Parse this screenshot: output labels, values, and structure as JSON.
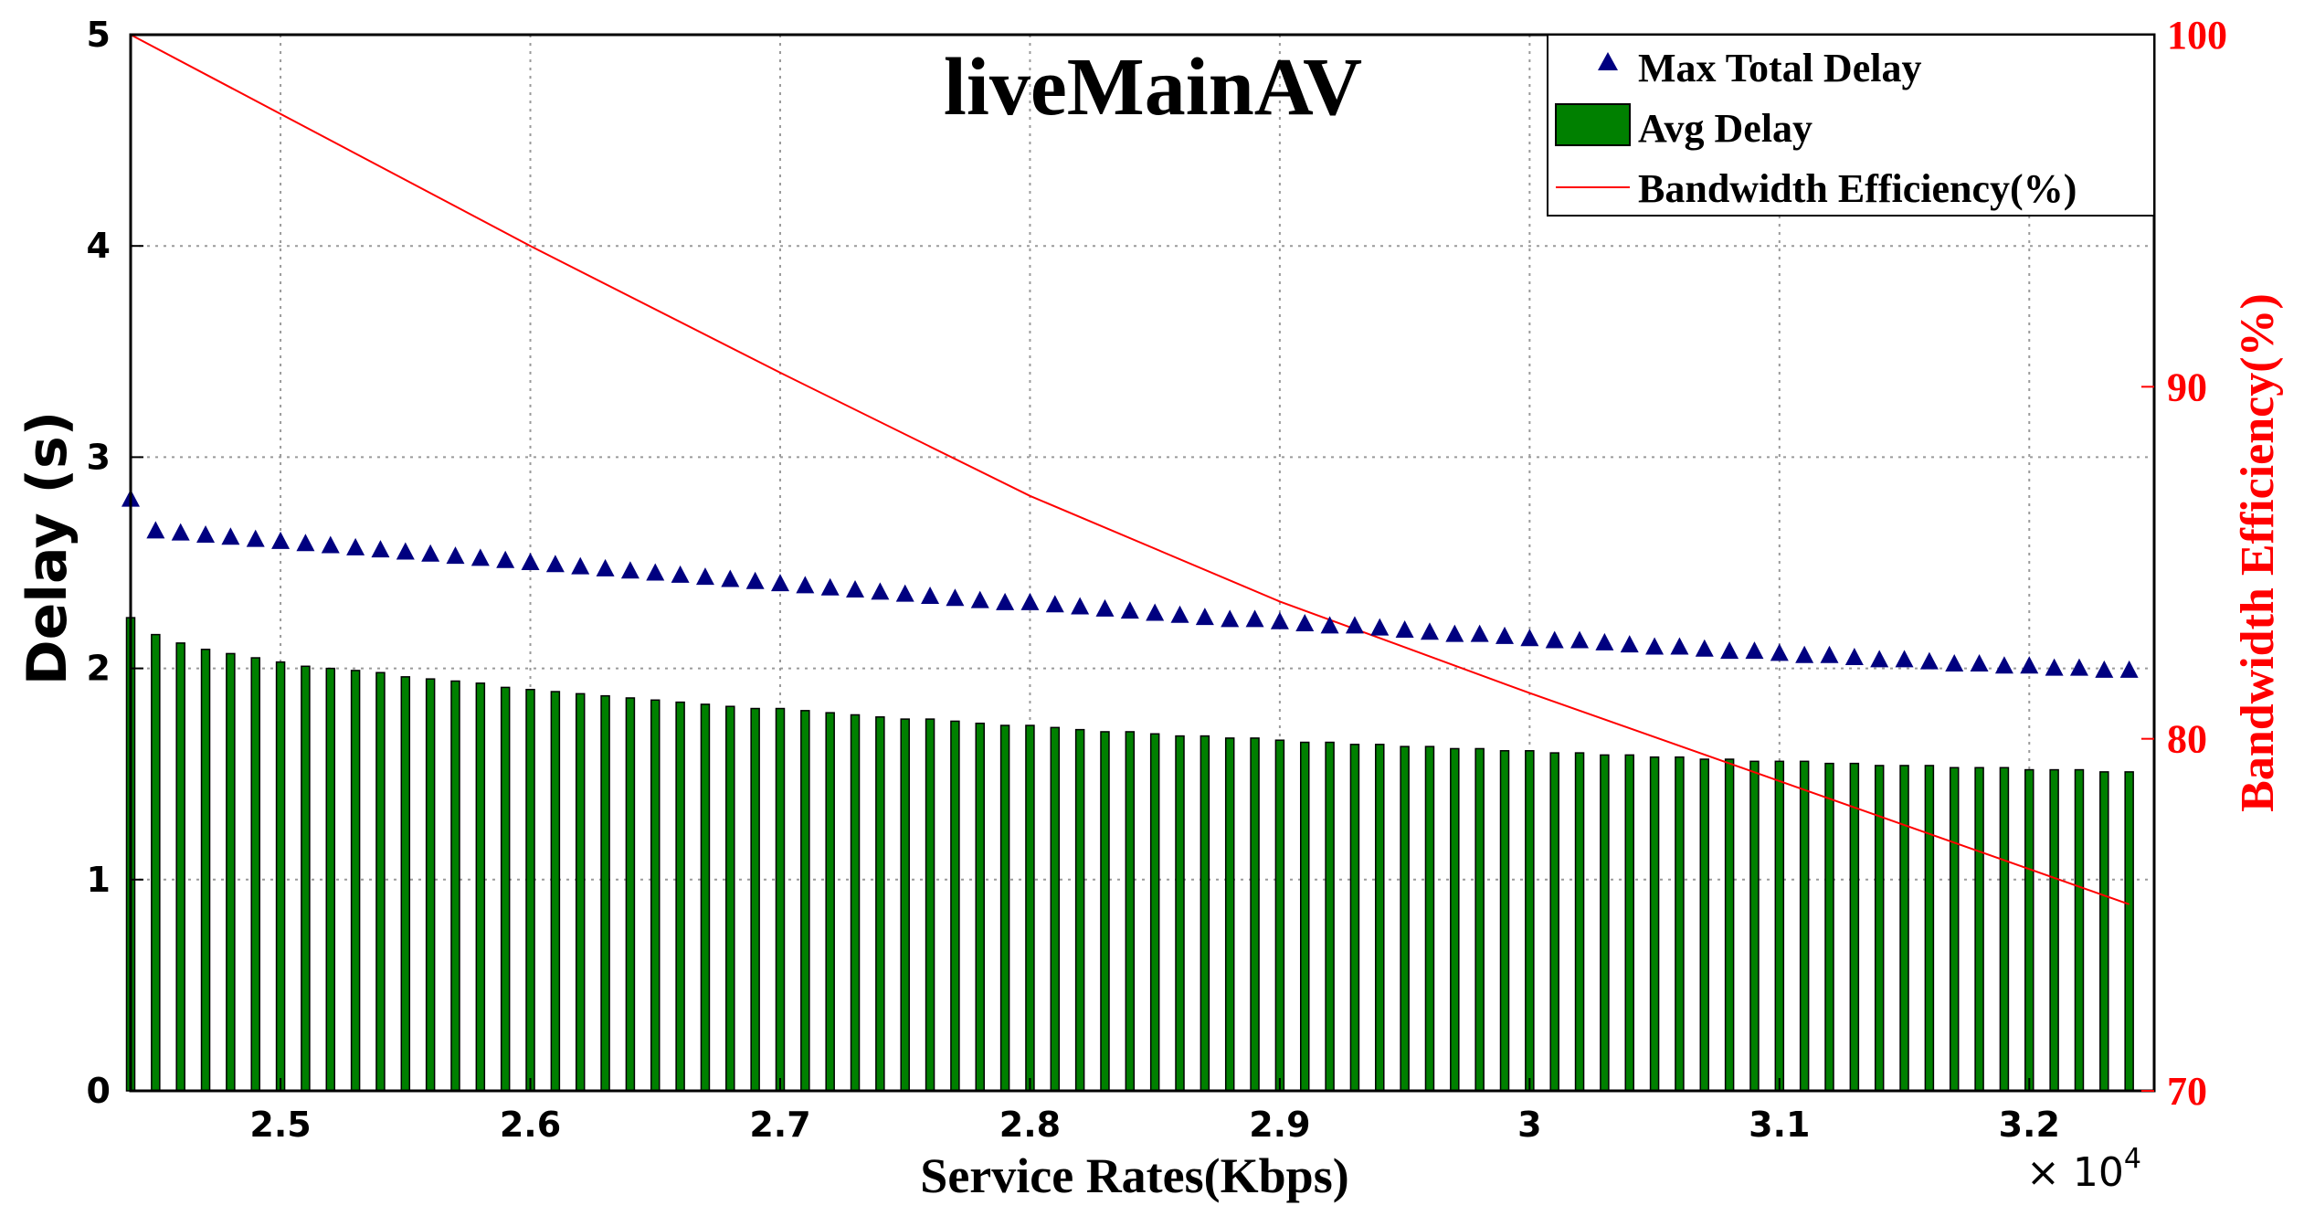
{
  "chart_data": {
    "type": "bar",
    "title": "liveMainAV",
    "xlabel": "Service Rates(Kbps)",
    "ylabel": "Delay (s)",
    "y2label": "Bandwidth Efficiency(%)",
    "x_multiplier": "× 10",
    "x_multiplier_exp": "4",
    "xlim": [
      24400,
      32500
    ],
    "ylim": [
      0,
      5
    ],
    "y2lim": [
      70,
      100
    ],
    "x_ticks": [
      25000,
      26000,
      27000,
      28000,
      29000,
      30000,
      31000,
      32000
    ],
    "x_tick_labels": [
      "2.5",
      "2.6",
      "2.7",
      "2.8",
      "2.9",
      "3",
      "3.1",
      "3.2"
    ],
    "y_ticks": [
      0,
      1,
      2,
      3,
      4,
      5
    ],
    "y_tick_labels": [
      "0",
      "1",
      "2",
      "3",
      "4",
      "5"
    ],
    "y2_ticks": [
      70,
      80,
      90,
      100
    ],
    "y2_tick_labels": [
      "70",
      "80",
      "90",
      "100"
    ],
    "grid": true,
    "legend_position": "top-right",
    "colors": {
      "max_delay": "#000080",
      "avg_delay_fill": "#008000",
      "avg_delay_edge": "#000000",
      "efficiency": "#ff0000",
      "grid": "#9a9a9a"
    },
    "x": [
      24400,
      24500,
      24600,
      24700,
      24800,
      24900,
      25000,
      25100,
      25200,
      25300,
      25400,
      25500,
      25600,
      25700,
      25800,
      25900,
      26000,
      26100,
      26200,
      26300,
      26400,
      26500,
      26600,
      26700,
      26800,
      26900,
      27000,
      27100,
      27200,
      27300,
      27400,
      27500,
      27600,
      27700,
      27800,
      27900,
      28000,
      28100,
      28200,
      28300,
      28400,
      28500,
      28600,
      28700,
      28800,
      28900,
      29000,
      29100,
      29200,
      29300,
      29400,
      29500,
      29600,
      29700,
      29800,
      29900,
      30000,
      30100,
      30200,
      30300,
      30400,
      30500,
      30600,
      30700,
      30800,
      30900,
      31000,
      31100,
      31200,
      31300,
      31400,
      31500,
      31600,
      31700,
      31800,
      31900,
      32000,
      32100,
      32200,
      32300,
      32400
    ],
    "series": [
      {
        "name": "Max Total Delay",
        "type": "scatter",
        "marker": "triangle",
        "values": [
          2.8,
          2.65,
          2.64,
          2.63,
          2.62,
          2.61,
          2.6,
          2.59,
          2.58,
          2.57,
          2.56,
          2.55,
          2.54,
          2.53,
          2.52,
          2.51,
          2.5,
          2.49,
          2.48,
          2.47,
          2.46,
          2.45,
          2.44,
          2.43,
          2.42,
          2.41,
          2.4,
          2.39,
          2.38,
          2.37,
          2.36,
          2.35,
          2.34,
          2.33,
          2.32,
          2.31,
          2.31,
          2.3,
          2.29,
          2.28,
          2.27,
          2.26,
          2.25,
          2.24,
          2.23,
          2.23,
          2.22,
          2.21,
          2.2,
          2.2,
          2.19,
          2.18,
          2.17,
          2.16,
          2.16,
          2.15,
          2.14,
          2.13,
          2.13,
          2.12,
          2.11,
          2.1,
          2.1,
          2.09,
          2.08,
          2.08,
          2.07,
          2.06,
          2.06,
          2.05,
          2.04,
          2.04,
          2.03,
          2.02,
          2.02,
          2.01,
          2.01,
          2.0,
          2.0,
          1.99,
          1.99
        ]
      },
      {
        "name": "Avg Delay",
        "type": "bar",
        "values": [
          2.24,
          2.16,
          2.12,
          2.09,
          2.07,
          2.05,
          2.03,
          2.01,
          2.0,
          1.99,
          1.98,
          1.96,
          1.95,
          1.94,
          1.93,
          1.91,
          1.9,
          1.89,
          1.88,
          1.87,
          1.86,
          1.85,
          1.84,
          1.83,
          1.82,
          1.81,
          1.81,
          1.8,
          1.79,
          1.78,
          1.77,
          1.76,
          1.76,
          1.75,
          1.74,
          1.73,
          1.73,
          1.72,
          1.71,
          1.7,
          1.7,
          1.69,
          1.68,
          1.68,
          1.67,
          1.67,
          1.66,
          1.65,
          1.65,
          1.64,
          1.64,
          1.63,
          1.63,
          1.62,
          1.62,
          1.61,
          1.61,
          1.6,
          1.6,
          1.59,
          1.59,
          1.58,
          1.58,
          1.57,
          1.57,
          1.56,
          1.56,
          1.56,
          1.55,
          1.55,
          1.54,
          1.54,
          1.54,
          1.53,
          1.53,
          1.53,
          1.52,
          1.52,
          1.52,
          1.51,
          1.51
        ]
      },
      {
        "name": "Bandwidth Efficiency(%)",
        "type": "line",
        "axis": "right",
        "x": [
          24400,
          26000,
          27000,
          28000,
          29000,
          30000,
          31000,
          32400
        ],
        "values": [
          100,
          94.0,
          90.4,
          86.9,
          83.9,
          81.3,
          78.8,
          75.3
        ]
      }
    ]
  }
}
